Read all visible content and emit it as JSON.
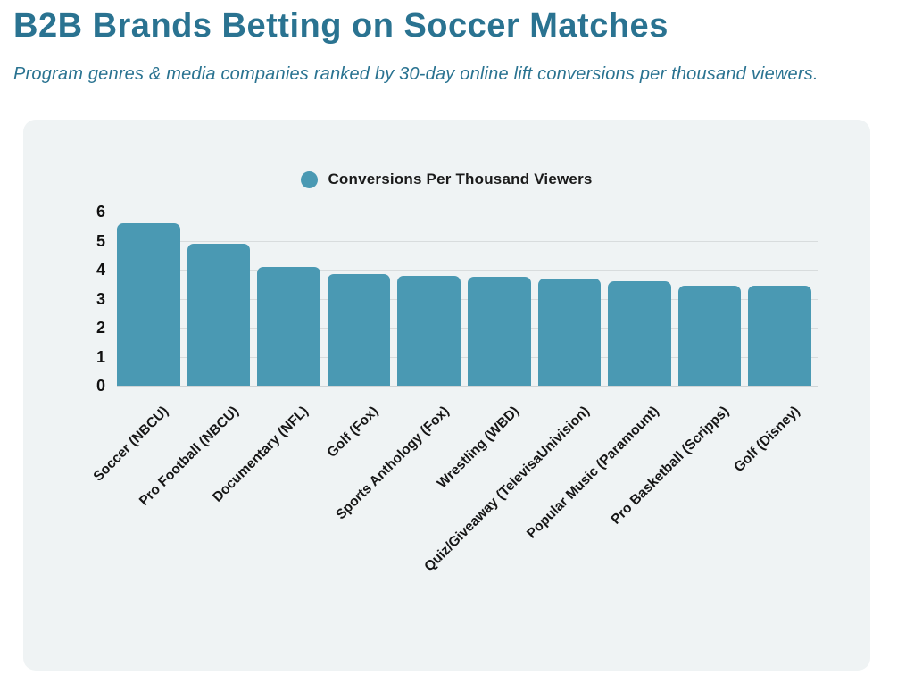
{
  "page": {
    "title": "B2B Brands Betting on Soccer Matches",
    "subtitle": "Program genres & media companies ranked by 30-day online lift conversions per thousand viewers."
  },
  "colors": {
    "title_text": "#2a7391",
    "bar": "#4a99b3",
    "card_background": "#eff3f4",
    "gridline": "#d8dcdd",
    "text_dark": "#1a1a1a",
    "page_background": "#ffffff"
  },
  "chart_data": {
    "type": "bar",
    "title": "",
    "legend": "Conversions Per Thousand Viewers",
    "legend_position": "top",
    "categories": [
      "Soccer (NBCU)",
      "Pro Football (NBCU)",
      "Documentary (NFL)",
      "Golf (Fox)",
      "Sports Anthology (Fox)",
      "Wrestling (WBD)",
      "Quiz/Giveaway (TelevisaUnivision)",
      "Popular Music (Paramount)",
      "Pro Basketball (Scripps)",
      "Golf (Disney)"
    ],
    "values": [
      5.6,
      4.9,
      4.1,
      3.85,
      3.8,
      3.75,
      3.7,
      3.6,
      3.45,
      3.45
    ],
    "xlabel": "",
    "ylabel": "",
    "ylim": [
      0,
      6
    ],
    "yticks": [
      0,
      1,
      2,
      3,
      4,
      5,
      6
    ],
    "grid": true,
    "xtick_rotation_deg": -45
  }
}
